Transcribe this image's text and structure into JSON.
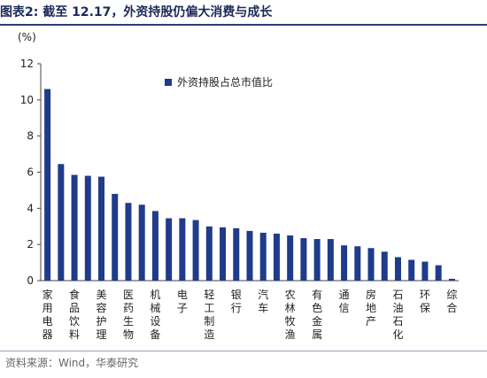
{
  "header": {
    "title": "图表2:  截至 12.17，外资持股仍偏大消费与成长"
  },
  "footer": {
    "source": "资料来源：Wind，华泰研究"
  },
  "chart_data": {
    "type": "bar",
    "unit_label": "(%)",
    "ylim": [
      0,
      12
    ],
    "yticks": [
      0,
      2,
      4,
      6,
      8,
      10,
      12
    ],
    "grid": false,
    "legend_position": "top-center",
    "bar_color": "#1f3b8a",
    "series": [
      {
        "name": "外资持股占总市值比",
        "values": [
          10.6,
          6.45,
          5.85,
          5.8,
          5.75,
          4.8,
          4.3,
          4.2,
          3.85,
          3.45,
          3.45,
          3.35,
          3.0,
          2.95,
          2.9,
          2.75,
          2.65,
          2.6,
          2.5,
          2.35,
          2.3,
          2.3,
          1.95,
          1.9,
          1.8,
          1.6,
          1.3,
          1.15,
          1.05,
          0.85,
          0.1
        ]
      }
    ],
    "categories": [
      "",
      "",
      "",
      "",
      "",
      "",
      "",
      "",
      "",
      "",
      "",
      "",
      "",
      "",
      "",
      "",
      "",
      "",
      "",
      "",
      "",
      "",
      "",
      "",
      "",
      "",
      "",
      "",
      "",
      "",
      ""
    ],
    "category_labels": [
      {
        "index": 0,
        "text": "家用电器"
      },
      {
        "index": 2,
        "text": "食品饮料"
      },
      {
        "index": 4,
        "text": "美容护理"
      },
      {
        "index": 6,
        "text": "医药生物"
      },
      {
        "index": 8,
        "text": "机械设备"
      },
      {
        "index": 10,
        "text": "电子"
      },
      {
        "index": 12,
        "text": "轻工制造"
      },
      {
        "index": 14,
        "text": "银行"
      },
      {
        "index": 16,
        "text": "汽车"
      },
      {
        "index": 18,
        "text": "农林牧渔"
      },
      {
        "index": 20,
        "text": "有色金属"
      },
      {
        "index": 22,
        "text": "通信"
      },
      {
        "index": 24,
        "text": "房地产"
      },
      {
        "index": 26,
        "text": "石油石化"
      },
      {
        "index": 28,
        "text": "环保"
      },
      {
        "index": 30,
        "text": "综合"
      }
    ]
  }
}
